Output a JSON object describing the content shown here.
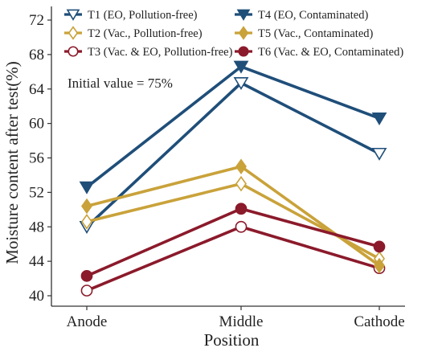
{
  "chart_data": {
    "type": "line",
    "xlabel": "Position",
    "ylabel": "Moisture content after test(%)",
    "categories": [
      "Anode",
      "Middle",
      "Cathode"
    ],
    "ylim": [
      40,
      72
    ],
    "yticks": [
      40,
      44,
      48,
      52,
      56,
      60,
      64,
      68,
      72
    ],
    "annotation": "Initial value = 75%",
    "legend_position": "top",
    "grid": false,
    "series": [
      {
        "name": "T1 (EO, Pollution-free)",
        "values": [
          48.0,
          64.7,
          56.5
        ],
        "color": "#1f4e79",
        "marker": "triangle-down",
        "filled": false
      },
      {
        "name": "T2 (Vac., Pollution-free)",
        "values": [
          48.6,
          53.0,
          44.3
        ],
        "color": "#c9a23a",
        "marker": "diamond",
        "filled": false
      },
      {
        "name": "T3 (Vac. & EO, Pollution-free)",
        "values": [
          40.6,
          48.0,
          43.2
        ],
        "color": "#8b1a2b",
        "marker": "circle",
        "filled": false
      },
      {
        "name": "T4 (EO, Contaminated)",
        "values": [
          52.6,
          66.6,
          60.6
        ],
        "color": "#1f4e79",
        "marker": "triangle-down",
        "filled": true
      },
      {
        "name": "T5 (Vac., Contaminated)",
        "values": [
          50.4,
          55.0,
          43.5
        ],
        "color": "#c9a23a",
        "marker": "diamond",
        "filled": true
      },
      {
        "name": "T6 (Vac. & EO, Contaminated)",
        "values": [
          42.3,
          50.1,
          45.7
        ],
        "color": "#8b1a2b",
        "marker": "circle",
        "filled": true
      }
    ]
  }
}
